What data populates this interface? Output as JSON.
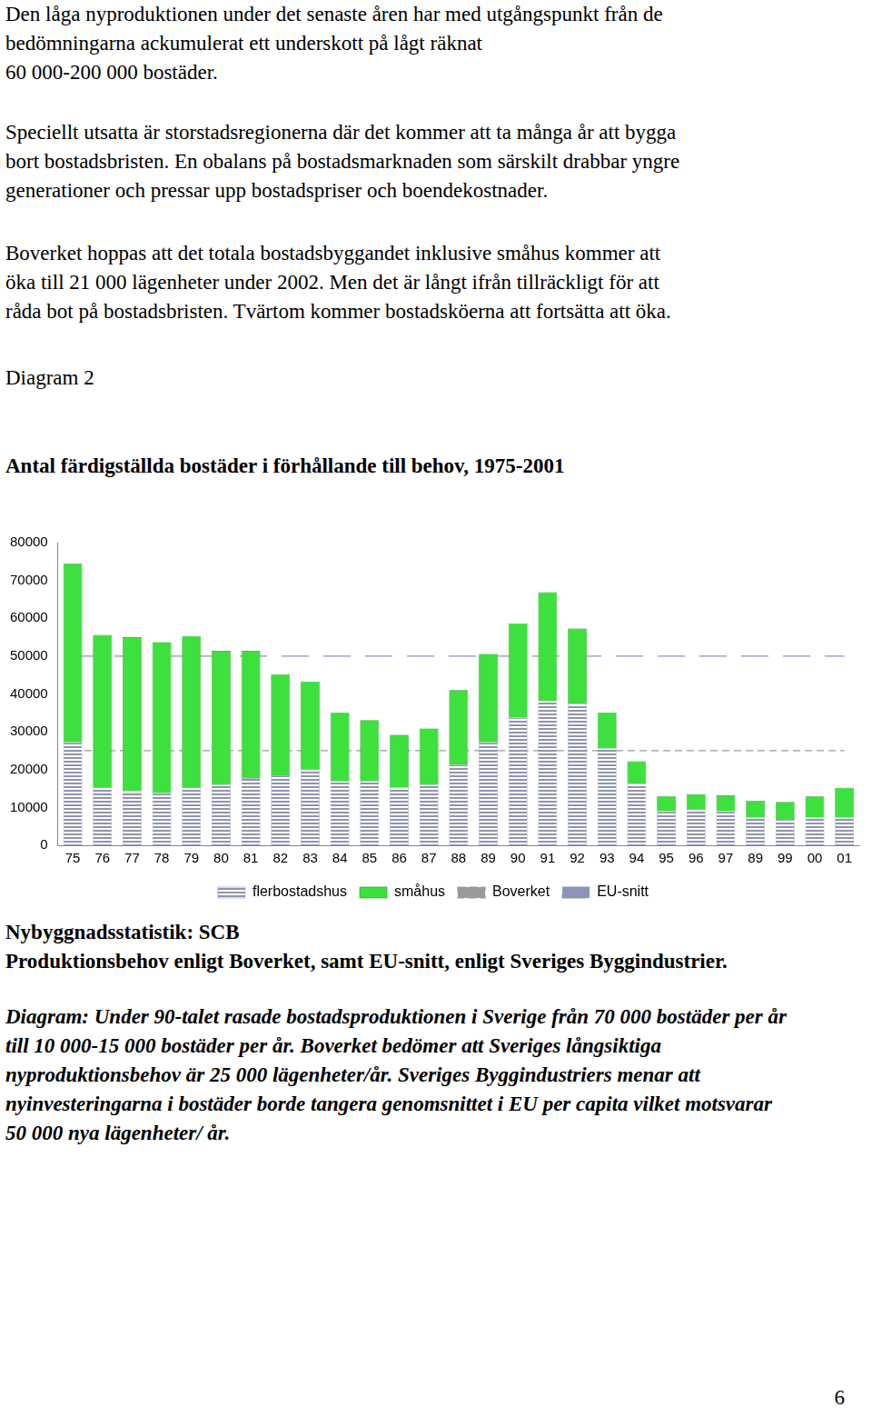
{
  "page": {
    "paragraphs": [
      [
        "Den låga nyproduktionen under det senaste åren har med utgångspunkt från de",
        "bedömningarna ackumulerat ett underskott på lågt räknat",
        "60 000-200 000 bostäder."
      ],
      [
        "Speciellt utsatta är storstadsregionerna där det kommer att ta många år att bygga",
        "bort bostadsbristen. En obalans på bostadsmarknaden som särskilt drabbar yngre",
        "generationer och pressar upp bostadspriser och boendekostnader."
      ],
      [
        "Boverket hoppas att det totala bostadsbyggandet inklusive småhus kommer att",
        "öka till 21 000 lägenheter under 2002. Men det är långt ifrån tillräckligt för att",
        "råda bot på bostadsbristen. Tvärtom kommer bostadsköerna att fortsätta att öka."
      ]
    ],
    "diagram_label": "Diagram 2",
    "sources": [
      "Nybyggnadsstatistik: SCB",
      "Produktionsbehov enligt Boverket, samt EU-snitt, enligt Sveriges Byggindustrier."
    ],
    "caption": [
      "Diagram: Under 90-talet rasade bostadsproduktionen i Sverige från 70 000 bostäder per år",
      "till 10 000-15 000 bostäder per år. Boverket bedömer att Sveriges långsiktiga",
      "nyproduktionsbehov är 25 000 lägenheter/år. Sveriges Byggindustriers menar att",
      "nyinvesteringarna i bostäder borde tangera genomsnittet i EU per capita vilket motsvarar",
      "50 000 nya lägenheter/ år."
    ],
    "page_number": "6"
  },
  "chart_data": {
    "type": "bar",
    "title": "Antal färdigställda bostäder i förhållande till behov, 1975-2001",
    "categories": [
      "75",
      "76",
      "77",
      "78",
      "79",
      "80",
      "81",
      "82",
      "83",
      "84",
      "85",
      "86",
      "87",
      "88",
      "89",
      "90",
      "91",
      "92",
      "93",
      "94",
      "95",
      "96",
      "97",
      "89",
      "99",
      "00",
      "01"
    ],
    "series": [
      {
        "name": "flerbostadshus",
        "type": "bar",
        "color": "#8e94b0",
        "values": [
          27200,
          15400,
          14300,
          13800,
          15400,
          16000,
          17700,
          18500,
          20200,
          16900,
          16900,
          15200,
          16000,
          21300,
          27200,
          33700,
          38200,
          37400,
          25600,
          16300,
          9000,
          9600,
          9000,
          7300,
          6700,
          7300,
          7300
        ]
      },
      {
        "name": "småhus",
        "type": "bar",
        "color": "#3ee03e",
        "values": [
          47200,
          40200,
          40700,
          39900,
          39900,
          35400,
          33700,
          26700,
          23100,
          18200,
          16200,
          14000,
          14900,
          19700,
          23400,
          25000,
          28700,
          19900,
          9500,
          5900,
          3900,
          3900,
          4200,
          4500,
          4800,
          5600,
          7900
        ]
      },
      {
        "name": "Boverket",
        "type": "line",
        "color": "#9a9a9a",
        "line_style": "dashed",
        "values": [
          25000,
          25000,
          25000,
          25000,
          25000,
          25000,
          25000,
          25000,
          25000,
          25000,
          25000,
          25000,
          25000,
          25000,
          25000,
          25000,
          25000,
          25000,
          25000,
          25000,
          25000,
          25000,
          25000,
          25000,
          25000,
          25000,
          25000
        ]
      },
      {
        "name": "EU-snitt",
        "type": "line",
        "color": "#8a94b8",
        "line_style": "long_dashed",
        "values": [
          50000,
          50000,
          50000,
          50000,
          50000,
          50000,
          50000,
          50000,
          50000,
          50000,
          50000,
          50000,
          50000,
          50000,
          50000,
          50000,
          50000,
          50000,
          50000,
          50000,
          50000,
          50000,
          50000,
          50000,
          50000,
          50000,
          50000
        ]
      }
    ],
    "stacked": true,
    "ylim": [
      0,
      80000
    ],
    "yticks": [
      0,
      10000,
      20000,
      30000,
      40000,
      50000,
      60000,
      70000,
      80000
    ],
    "grid": false,
    "legend": "bottom"
  }
}
